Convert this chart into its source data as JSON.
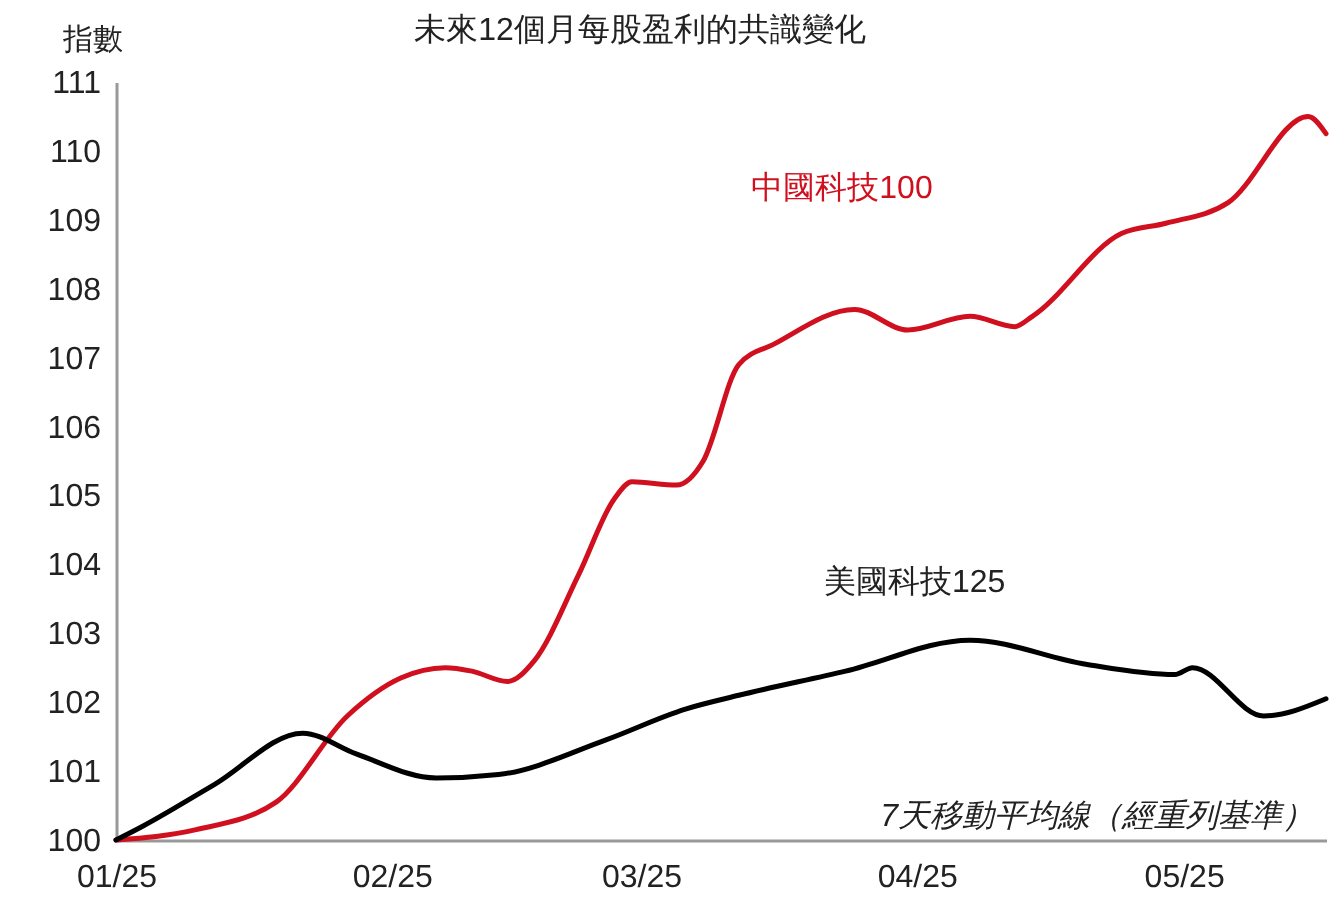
{
  "chart_data": {
    "type": "line",
    "title": "未來12個月每股盈利的共識變化",
    "ylabel": "指數",
    "annotations": [
      "7天移動平均線（經重列基準）"
    ],
    "xlim": [
      "2025-01-01",
      "2025-05-17"
    ],
    "xticks": [
      {
        "value": "2025-01-01",
        "label": "01/25"
      },
      {
        "value": "2025-02-01",
        "label": "02/25"
      },
      {
        "value": "2025-03-01",
        "label": "03/25"
      },
      {
        "value": "2025-04-01",
        "label": "04/25"
      },
      {
        "value": "2025-05-01",
        "label": "05/25"
      }
    ],
    "ylim": [
      100,
      111
    ],
    "yticks": [
      100,
      101,
      102,
      103,
      104,
      105,
      106,
      107,
      108,
      109,
      110,
      111
    ],
    "grid": false,
    "marker": "none",
    "line_style": "solid",
    "series": [
      {
        "name": "中國科技100",
        "color": "#d0101f",
        "x": [
          "2025-01-01",
          "2025-01-10",
          "2025-01-19",
          "2025-01-27",
          "2025-02-02",
          "2025-02-07",
          "2025-02-10",
          "2025-02-14",
          "2025-02-17",
          "2025-02-22",
          "2025-02-26",
          "2025-02-28",
          "2025-03-05",
          "2025-03-08",
          "2025-03-12",
          "2025-03-16",
          "2025-03-25",
          "2025-03-31",
          "2025-04-07",
          "2025-04-12",
          "2025-04-14",
          "2025-04-24",
          "2025-04-29",
          "2025-05-06",
          "2025-05-15",
          "2025-05-17"
        ],
        "values": [
          100,
          100.15,
          100.55,
          101.8,
          102.35,
          102.5,
          102.45,
          102.3,
          102.6,
          103.85,
          104.95,
          105.2,
          105.15,
          105.5,
          106.9,
          107.2,
          107.7,
          107.4,
          107.6,
          107.45,
          107.6,
          108.8,
          108.95,
          109.25,
          110.5,
          110.25
        ]
      },
      {
        "name": "美國科技125",
        "color": "#000000",
        "x": [
          "2025-01-01",
          "2025-01-04",
          "2025-01-12",
          "2025-01-22",
          "2025-01-28",
          "2025-02-06",
          "2025-02-13",
          "2025-02-25",
          "2025-03-06",
          "2025-03-12",
          "2025-03-24",
          "2025-04-07",
          "2025-04-20",
          "2025-04-30",
          "2025-05-02",
          "2025-05-10",
          "2025-05-17"
        ],
        "values": [
          100,
          100.2,
          100.8,
          101.55,
          101.25,
          100.9,
          100.95,
          101.45,
          101.9,
          102.1,
          102.45,
          102.9,
          102.55,
          102.4,
          102.5,
          101.8,
          102.05
        ]
      }
    ]
  }
}
